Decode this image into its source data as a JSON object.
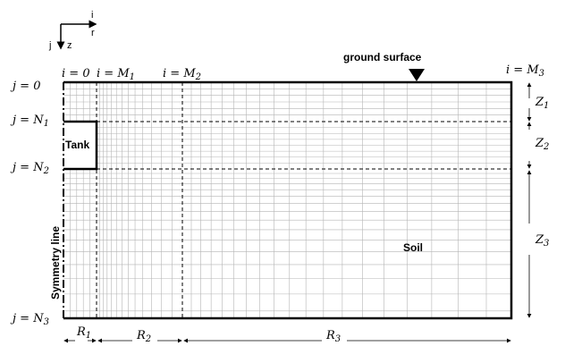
{
  "axes": {
    "i": "i",
    "r": "r",
    "j": "j",
    "z": "z"
  },
  "top_labels": {
    "i0": "i = 0",
    "iM1": "i = M",
    "iM1_sub": "1",
    "iM2": "i = M",
    "iM2_sub": "2",
    "iM3": "i = M",
    "iM3_sub": "3",
    "ground": "ground surface"
  },
  "left_labels": {
    "j0": "j = 0",
    "jN1": "j = N",
    "jN1_sub": "1",
    "jN2": "j = N",
    "jN2_sub": "2",
    "jN3": "j = N",
    "jN3_sub": "3"
  },
  "regions": {
    "tank": "Tank",
    "soil": "Soil",
    "symmetry": "Symmetry line"
  },
  "right_dims": [
    {
      "name": "Z",
      "sub": "1"
    },
    {
      "name": "Z",
      "sub": "2"
    },
    {
      "name": "Z",
      "sub": "3"
    }
  ],
  "bottom_dims": [
    {
      "name": "R",
      "sub": "1"
    },
    {
      "name": "R",
      "sub": "2"
    },
    {
      "name": "R",
      "sub": "3"
    }
  ]
}
